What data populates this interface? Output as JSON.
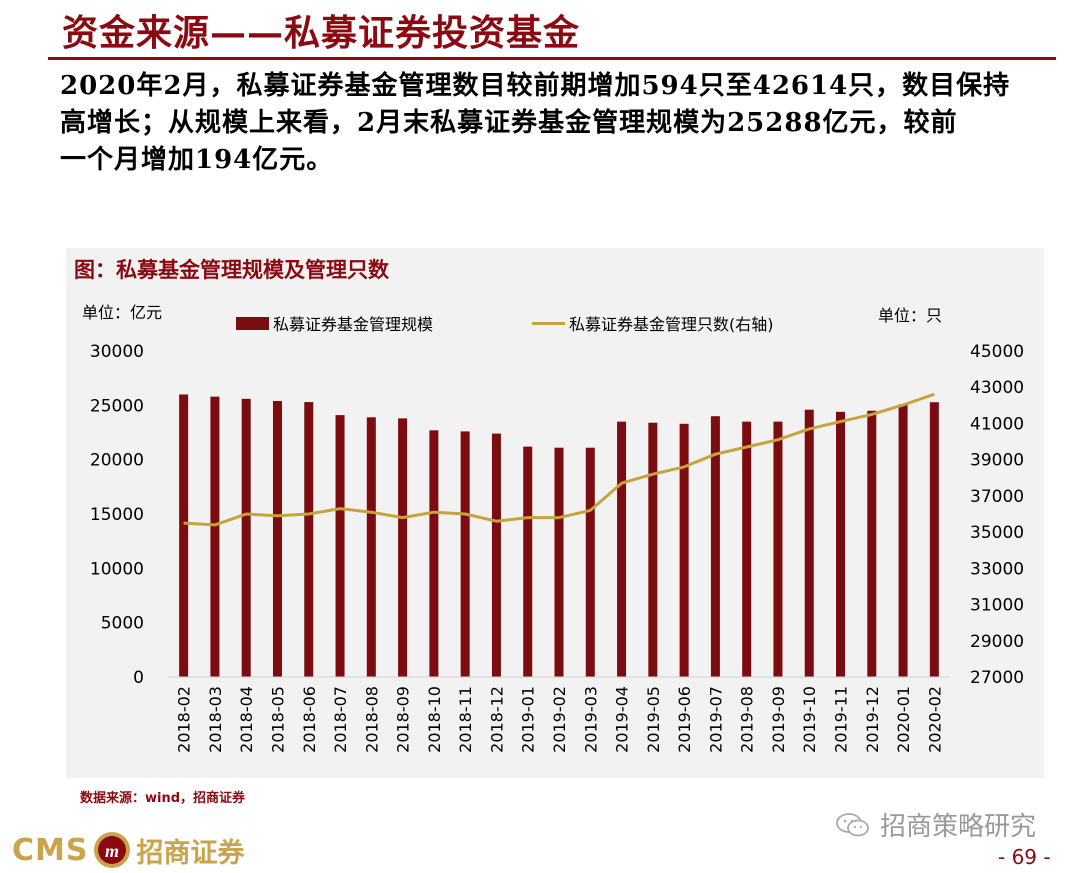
{
  "header": {
    "title": "资金来源——私募证券投资基金",
    "summary_lines": [
      "2020年2月，私募证券基金管理数目较前期增加594只至42614只，数目保持",
      "高增长；从规模上来看，2月末私募证券基金管理规模为25288亿元，较前",
      "一个月增加194亿元。"
    ]
  },
  "figure": {
    "title": "图：私募基金管理规模及管理只数",
    "unit_left": "单位：亿元",
    "unit_right": "单位：只",
    "source": "数据来源：wind，招商证券"
  },
  "chart_data": {
    "type": "bar",
    "categories": [
      "2018-02",
      "2018-03",
      "2018-04",
      "2018-05",
      "2018-06",
      "2018-07",
      "2018-08",
      "2018-09",
      "2018-10",
      "2018-11",
      "2018-12",
      "2019-01",
      "2019-02",
      "2019-03",
      "2019-04",
      "2019-05",
      "2019-06",
      "2019-07",
      "2019-08",
      "2019-09",
      "2019-10",
      "2019-11",
      "2019-12",
      "2020-01",
      "2020-02"
    ],
    "series": [
      {
        "name": "私募证券基金管理规模",
        "type": "bar",
        "axis": "left",
        "color": "#7B0C0F",
        "values": [
          26000,
          25800,
          25600,
          25400,
          25300,
          24100,
          23900,
          23800,
          22700,
          22600,
          22400,
          21200,
          21100,
          21100,
          23500,
          23400,
          23300,
          24000,
          23500,
          23500,
          24600,
          24400,
          24500,
          25094,
          25288
        ]
      },
      {
        "name": "私募证券基金管理只数(右轴)",
        "type": "line",
        "axis": "right",
        "color": "#C7A23E",
        "values": [
          35500,
          35400,
          36000,
          35900,
          36000,
          36300,
          36100,
          35800,
          36100,
          36000,
          35600,
          35800,
          35800,
          36200,
          37700,
          38200,
          38600,
          39300,
          39700,
          40100,
          40700,
          41100,
          41500,
          42020,
          42614
        ]
      }
    ],
    "ylim_left": [
      0,
      30000
    ],
    "yticks_left": [
      0,
      5000,
      10000,
      15000,
      20000,
      25000,
      30000
    ],
    "ylim_right": [
      27000,
      45000
    ],
    "yticks_right": [
      27000,
      29000,
      31000,
      33000,
      35000,
      37000,
      39000,
      41000,
      43000,
      45000
    ],
    "legend_position": "top",
    "grid": false
  },
  "footer": {
    "watermark": "招商策略研究",
    "logo_text": "CMS",
    "logo_cn": "招商证券",
    "logo_mark": "m",
    "page_number": "- 69 -"
  },
  "colors": {
    "accent": "#8B0A12",
    "bar": "#7B0C0F",
    "line": "#C7A23E",
    "panel": "#f2f2f2",
    "logo": "#C9A44A"
  }
}
